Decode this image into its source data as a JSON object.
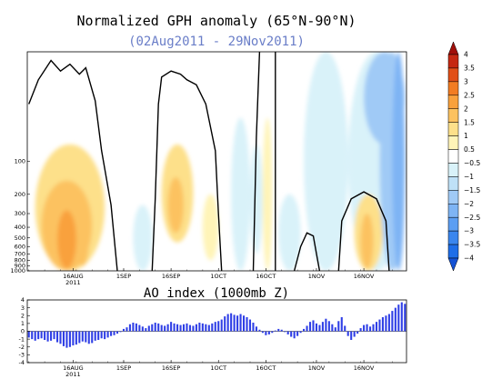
{
  "chart_data": [
    {
      "type": "heatmap",
      "title": "Normalized GPH anomaly (65°N-90°N)",
      "subtitle": "(02Aug2011 - 29Nov2011)",
      "y_scale": "log",
      "ylim": [
        1000,
        10
      ],
      "y_ticks": [
        1000,
        900,
        800,
        700,
        600,
        500,
        400,
        300,
        200,
        100
      ],
      "y_tick_labels": [
        "1000",
        "900",
        "800",
        "700",
        "600",
        "500",
        "400",
        "300",
        "200",
        "100"
      ],
      "x_range": [
        "2011-08-02",
        "2011-11-29"
      ],
      "x_ticks": [
        "2011-08-16",
        "2011-09-01",
        "2011-09-16",
        "2011-10-01",
        "2011-10-16",
        "2011-11-01",
        "2011-11-16"
      ],
      "x_tick_labels": [
        "16AUG",
        "1SEP",
        "16SEP",
        "1OCT",
        "16OCT",
        "1NOV",
        "16NOV"
      ],
      "x_year_label": "2011",
      "colorbar": {
        "levels": [
          -4,
          -3.5,
          -3,
          -2.5,
          -2,
          -1.5,
          -1,
          -0.5,
          0.5,
          1,
          1.5,
          2,
          2.5,
          3,
          3.5,
          4
        ],
        "labels": [
          "−4",
          "−3.5",
          "−3",
          "−2.5",
          "−2",
          "−1.5",
          "−1",
          "−0.5",
          "0.5",
          "1",
          "1.5",
          "2",
          "2.5",
          "3",
          "3.5",
          "4"
        ],
        "colors": [
          "#1452d4",
          "#1e6ee8",
          "#3a86ee",
          "#5c9ef2",
          "#7eb4f4",
          "#a0caf6",
          "#bfe1f7",
          "#d9f2f9",
          "#ffffff",
          "#fff4b8",
          "#fde08a",
          "#fcc260",
          "#f9a13c",
          "#f27c22",
          "#e14f18",
          "#c52812",
          "#a00f0a"
        ]
      },
      "blobs": [
        {
          "t0": "2011-08-04",
          "t1": "2011-08-26",
          "p0": 1000,
          "p1": 70,
          "v": 1.2
        },
        {
          "t0": "2011-08-06",
          "t1": "2011-08-22",
          "p0": 1000,
          "p1": 150,
          "v": 1.8
        },
        {
          "t0": "2011-08-11",
          "t1": "2011-08-17",
          "p0": 950,
          "p1": 280,
          "v": 2.3
        },
        {
          "t0": "2011-08-17",
          "t1": "2011-08-21",
          "p0": 900,
          "p1": 320,
          "v": 1.6
        },
        {
          "t0": "2011-09-13",
          "t1": "2011-09-23",
          "p0": 550,
          "p1": 70,
          "v": 1.1
        },
        {
          "t0": "2011-09-15",
          "t1": "2011-09-20",
          "p0": 450,
          "p1": 140,
          "v": 1.6
        },
        {
          "t0": "2011-09-26",
          "t1": "2011-10-01",
          "p0": 800,
          "p1": 200,
          "v": 1.0
        },
        {
          "t0": "2011-10-15",
          "t1": "2011-10-18",
          "p0": 1000,
          "p1": 40,
          "v": 1.0
        },
        {
          "t0": "2011-11-13",
          "t1": "2011-11-22",
          "p0": 1000,
          "p1": 200,
          "v": 1.1
        },
        {
          "t0": "2011-11-15",
          "t1": "2011-11-19",
          "p0": 950,
          "p1": 300,
          "v": 2.0
        },
        {
          "t0": "2011-09-04",
          "t1": "2011-09-10",
          "p0": 1000,
          "p1": 250,
          "v": -0.7
        },
        {
          "t0": "2011-10-05",
          "t1": "2011-10-11",
          "p0": 1000,
          "p1": 40,
          "v": -0.8
        },
        {
          "t0": "2011-10-11",
          "t1": "2011-10-15",
          "p0": 700,
          "p1": 70,
          "v": -0.6
        },
        {
          "t0": "2011-10-20",
          "t1": "2011-10-27",
          "p0": 1000,
          "p1": 200,
          "v": -0.7
        },
        {
          "t0": "2011-10-28",
          "t1": "2011-11-11",
          "p0": 1000,
          "p1": 10,
          "v": -0.8
        },
        {
          "t0": "2011-11-11",
          "t1": "2011-11-29",
          "p0": 1000,
          "p1": 10,
          "v": -0.9
        },
        {
          "t0": "2011-11-16",
          "t1": "2011-11-29",
          "p0": 70,
          "p1": 10,
          "v": -1.5
        },
        {
          "t0": "2011-11-21",
          "t1": "2011-11-29",
          "p0": 1000,
          "p1": 10,
          "v": -1.9
        },
        {
          "t0": "2011-11-25",
          "t1": "2011-11-29",
          "p0": 1000,
          "p1": 10,
          "v": -2.4
        }
      ],
      "contours": [
        [
          [
            "2011-08-02",
            30
          ],
          [
            "2011-08-05",
            18
          ],
          [
            "2011-08-09",
            12
          ],
          [
            "2011-08-12",
            15
          ],
          [
            "2011-08-15",
            13
          ],
          [
            "2011-08-18",
            16
          ],
          [
            "2011-08-20",
            14
          ],
          [
            "2011-08-23",
            28
          ],
          [
            "2011-08-25",
            80
          ],
          [
            "2011-08-28",
            250
          ],
          [
            "2011-08-30",
            1000
          ]
        ],
        [
          [
            "2011-09-10",
            1000
          ],
          [
            "2011-09-11",
            220
          ],
          [
            "2011-09-12",
            30
          ],
          [
            "2011-09-13",
            17
          ],
          [
            "2011-09-16",
            15
          ],
          [
            "2011-09-19",
            16
          ],
          [
            "2011-09-21",
            18
          ],
          [
            "2011-09-24",
            20
          ],
          [
            "2011-09-27",
            30
          ],
          [
            "2011-09-30",
            80
          ],
          [
            "2011-10-01",
            300
          ],
          [
            "2011-10-02",
            1000
          ]
        ],
        [
          [
            "2011-10-12",
            1000
          ],
          [
            "2011-10-13",
            60
          ],
          [
            "2011-10-14",
            10
          ]
        ],
        [
          [
            "2011-10-19",
            10
          ],
          [
            "2011-10-19",
            1000
          ]
        ],
        [
          [
            "2011-10-25",
            1000
          ],
          [
            "2011-10-27",
            600
          ],
          [
            "2011-10-29",
            450
          ],
          [
            "2011-10-31",
            480
          ],
          [
            "2011-11-01",
            700
          ],
          [
            "2011-11-02",
            1000
          ]
        ],
        [
          [
            "2011-11-08",
            1000
          ],
          [
            "2011-11-09",
            350
          ],
          [
            "2011-11-12",
            220
          ],
          [
            "2011-11-16",
            190
          ],
          [
            "2011-11-20",
            220
          ],
          [
            "2011-11-23",
            350
          ],
          [
            "2011-11-24",
            1000
          ]
        ]
      ]
    },
    {
      "type": "bar",
      "title": "AO index (1000mb Z)",
      "ylim": [
        -4,
        4
      ],
      "y_ticks": [
        4,
        3,
        2,
        1,
        0,
        -1,
        -2,
        -3,
        -4
      ],
      "y_tick_labels": [
        "4",
        "3",
        "2",
        "1",
        "0",
        "-1",
        "-2",
        "-3",
        "-4"
      ],
      "x_range": [
        "2011-08-02",
        "2011-11-29"
      ],
      "x_ticks": [
        "2011-08-16",
        "2011-09-01",
        "2011-09-16",
        "2011-10-01",
        "2011-10-16",
        "2011-11-01",
        "2011-11-16"
      ],
      "x_tick_labels": [
        "16AUG",
        "1SEP",
        "16SEP",
        "1OCT",
        "16OCT",
        "1NOV",
        "16NOV"
      ],
      "x_year_label": "2011",
      "start_date": "2011-08-02",
      "color": "#2f3fe6",
      "values": [
        -0.8,
        -1.0,
        -1.2,
        -1.0,
        -0.9,
        -1.1,
        -1.3,
        -1.2,
        -1.0,
        -1.4,
        -1.6,
        -1.9,
        -2.1,
        -2.0,
        -1.8,
        -1.7,
        -1.5,
        -1.3,
        -1.4,
        -1.6,
        -1.5,
        -1.2,
        -1.1,
        -0.9,
        -1.0,
        -0.8,
        -0.6,
        -0.5,
        -0.3,
        -0.1,
        0.3,
        0.5,
        0.9,
        1.1,
        1.0,
        0.8,
        0.6,
        0.4,
        0.7,
        0.9,
        1.1,
        1.0,
        0.8,
        0.7,
        0.9,
        1.2,
        1.0,
        0.9,
        0.8,
        0.9,
        1.0,
        0.8,
        0.7,
        0.9,
        1.1,
        1.0,
        0.9,
        0.8,
        1.0,
        1.2,
        1.3,
        1.5,
        1.9,
        2.2,
        2.3,
        2.1,
        2.0,
        2.2,
        2.0,
        1.8,
        1.5,
        1.1,
        0.6,
        0.2,
        -0.2,
        -0.5,
        -0.4,
        -0.2,
        0.1,
        0.3,
        0.2,
        -0.1,
        -0.4,
        -0.7,
        -0.9,
        -0.6,
        -0.2,
        0.3,
        0.7,
        1.2,
        1.4,
        1.0,
        0.8,
        1.2,
        1.6,
        1.3,
        0.9,
        0.5,
        1.3,
        1.8,
        0.7,
        -0.6,
        -1.1,
        -0.7,
        -0.3,
        0.4,
        0.8,
        0.9,
        0.6,
        0.9,
        1.2,
        1.5,
        1.8,
        2.0,
        2.2,
        2.6,
        3.0,
        3.4,
        3.7,
        3.5
      ]
    }
  ]
}
